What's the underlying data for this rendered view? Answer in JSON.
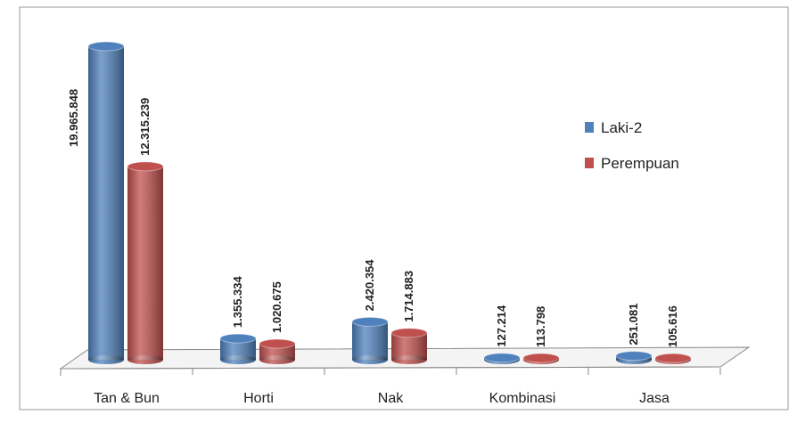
{
  "chart_data": {
    "type": "bar3d",
    "categories": [
      "Tan & Bun",
      "Horti",
      "Nak",
      "Kombinasi",
      "Jasa"
    ],
    "series": [
      {
        "name": "Laki-2",
        "color": "#4f81bd",
        "values": [
          19965848,
          1355334,
          2420354,
          127214,
          251081
        ],
        "value_labels": [
          "19.965.848",
          "1.355.334",
          "2.420.354",
          "127.214",
          "251.081"
        ]
      },
      {
        "name": "Perempuan",
        "color": "#c0504d",
        "values": [
          12315239,
          1020675,
          1714883,
          113798,
          105616
        ],
        "value_labels": [
          "12.315.239",
          "1.020.675",
          "1.714.883",
          "113.798",
          "105.616"
        ]
      }
    ],
    "legend": "right"
  }
}
